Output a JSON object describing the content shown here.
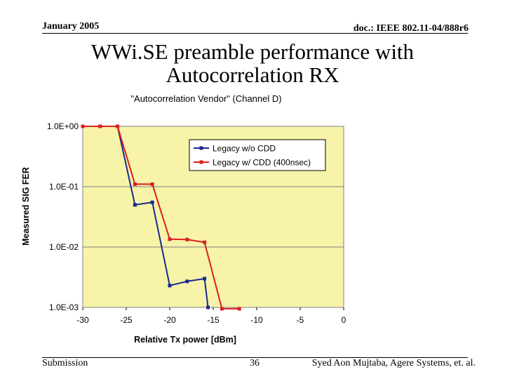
{
  "header": {
    "date": "January 2005",
    "doc_id": "doc.: IEEE 802.11-04/888r6"
  },
  "slide": {
    "title_line1": "WWi.SE preamble performance with",
    "title_line2": "Autocorrelation RX"
  },
  "footer": {
    "left": "Submission",
    "page": "36",
    "right": "Syed Aon Mujtaba, Agere Systems, et. al."
  },
  "colors": {
    "plot_background": "#f7f3a9",
    "series_blue": "#1a2a8c",
    "series_red": "#dc1f1f"
  },
  "chart_data": {
    "type": "line",
    "title": "\"Autocorrelation Vendor\" (Channel D)",
    "xlabel": "Relative Tx power [dBm]",
    "ylabel": "Measured SIG FER",
    "xlim": [
      -30,
      0
    ],
    "ylim": [
      0.001,
      1
    ],
    "y_scale": "log",
    "x_ticks": [
      "-30",
      "-25",
      "-20",
      "-15",
      "-10",
      "-5",
      "0"
    ],
    "y_ticks": [
      "1.0E+00",
      "1.0E-01",
      "1.0E-02",
      "1.0E-03"
    ],
    "grid": "horizontal",
    "legend_position": "top-right",
    "series": [
      {
        "name": "Legacy w/o CDD",
        "color": "#1a2a8c",
        "x": [
          -30,
          -28,
          -26,
          -24,
          -22,
          -20,
          -18,
          -16,
          -15.6
        ],
        "y": [
          1.0,
          1.0,
          1.0,
          0.05,
          0.055,
          0.0023,
          0.0027,
          0.003,
          0.001
        ]
      },
      {
        "name": "Legacy w/ CDD (400nsec)",
        "color": "#dc1f1f",
        "x": [
          -30,
          -28,
          -26,
          -24,
          -22,
          -20,
          -18,
          -16,
          -14,
          -12
        ],
        "y": [
          1.0,
          1.0,
          1.0,
          0.11,
          0.11,
          0.0135,
          0.0133,
          0.012,
          0.00095,
          0.00095
        ]
      }
    ]
  }
}
